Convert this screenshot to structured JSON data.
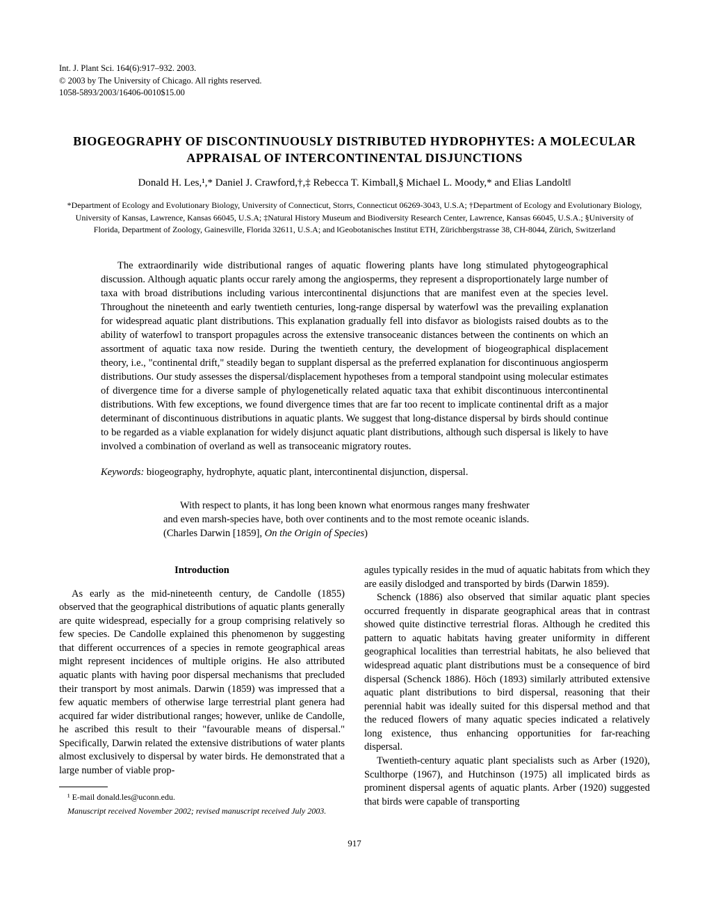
{
  "header": {
    "citation": "Int. J. Plant Sci. 164(6):917–932. 2003.",
    "copyright": "© 2003 by The University of Chicago. All rights reserved.",
    "code": "1058-5893/2003/16406-0010$15.00"
  },
  "title": "BIOGEOGRAPHY OF DISCONTINUOUSLY DISTRIBUTED HYDROPHYTES: A MOLECULAR APPRAISAL OF INTERCONTINENTAL DISJUNCTIONS",
  "authors": "Donald H. Les,¹,* Daniel J. Crawford,†,‡ Rebecca T. Kimball,§ Michael L. Moody,* and Elias Landolt‖",
  "affiliations": "*Department of Ecology and Evolutionary Biology, University of Connecticut, Storrs, Connecticut 06269-3043, U.S.A; †Department of Ecology and Evolutionary Biology, University of Kansas, Lawrence, Kansas 66045, U.S.A; ‡Natural History Museum and Biodiversity Research Center, Lawrence, Kansas 66045, U.S.A.; §University of Florida, Department of Zoology, Gainesville, Florida 32611, U.S.A; and ‖Geobotanisches Institut ETH, Zürichbergstrasse 38, CH-8044, Zürich, Switzerland",
  "abstract": "The extraordinarily wide distributional ranges of aquatic flowering plants have long stimulated phytogeographical discussion. Although aquatic plants occur rarely among the angiosperms, they represent a disproportionately large number of taxa with broad distributions including various intercontinental disjunctions that are manifest even at the species level. Throughout the nineteenth and early twentieth centuries, long-range dispersal by waterfowl was the prevailing explanation for widespread aquatic plant distributions. This explanation gradually fell into disfavor as biologists raised doubts as to the ability of waterfowl to transport propagules across the extensive transoceanic distances between the continents on which an assortment of aquatic taxa now reside. During the twentieth century, the development of biogeographical displacement theory, i.e., \"continental drift,\" steadily began to supplant dispersal as the preferred explanation for discontinuous angiosperm distributions. Our study assesses the dispersal/displacement hypotheses from a temporal standpoint using molecular estimates of divergence time for a diverse sample of phylogenetically related aquatic taxa that exhibit discontinuous intercontinental distributions. With few exceptions, we found divergence times that are far too recent to implicate continental drift as a major determinant of discontinuous distributions in aquatic plants. We suggest that long-distance dispersal by birds should continue to be regarded as a viable explanation for widely disjunct aquatic plant distributions, although such dispersal is likely to have involved a combination of overland as well as transoceanic migratory routes.",
  "keywords_label": "Keywords:",
  "keywords": " biogeography, hydrophyte, aquatic plant, intercontinental disjunction, dispersal.",
  "epigraph_text": "With respect to plants, it has long been known what enormous ranges many freshwater and even marsh-species have, both over continents and to the most remote oceanic islands. (Charles Darwin [1859], ",
  "epigraph_source": "On the Origin of Species",
  "epigraph_close": ")",
  "intro_heading": "Introduction",
  "body": {
    "p1": "As early as the mid-nineteenth century, de Candolle (1855) observed that the geographical distributions of aquatic plants generally are quite widespread, especially for a group comprising relatively so few species. De Candolle explained this phenomenon by suggesting that different occurrences of a species in remote geographical areas might represent incidences of multiple origins. He also attributed aquatic plants with having poor dispersal mechanisms that precluded their transport by most animals. Darwin (1859) was impressed that a few aquatic members of otherwise large terrestrial plant genera had acquired far wider distributional ranges; however, unlike de Candolle, he ascribed this result to their \"favourable means of dispersal.\" Specifically, Darwin related the extensive distributions of water plants almost exclusively to dispersal by water birds. He demonstrated that a large number of viable prop-",
    "p2": "agules typically resides in the mud of aquatic habitats from which they are easily dislodged and transported by birds (Darwin 1859).",
    "p3": "Schenck (1886) also observed that similar aquatic plant species occurred frequently in disparate geographical areas that in contrast showed quite distinctive terrestrial floras. Although he credited this pattern to aquatic habitats having greater uniformity in different geographical localities than terrestrial habitats, he also believed that widespread aquatic plant distributions must be a consequence of bird dispersal (Schenck 1886). Höch (1893) similarly attributed extensive aquatic plant distributions to bird dispersal, reasoning that their perennial habit was ideally suited for this dispersal method and that the reduced flowers of many aquatic species indicated a relatively long existence, thus enhancing opportunities for far-reaching dispersal.",
    "p4": "Twentieth-century aquatic plant specialists such as Arber (1920), Sculthorpe (1967), and Hutchinson (1975) all implicated birds as prominent dispersal agents of aquatic plants. Arber (1920) suggested that birds were capable of transporting"
  },
  "footnotes": {
    "email": "¹ E-mail donald.les@uconn.edu.",
    "manuscript": "Manuscript received November 2002; revised manuscript received July 2003."
  },
  "page_number": "917"
}
